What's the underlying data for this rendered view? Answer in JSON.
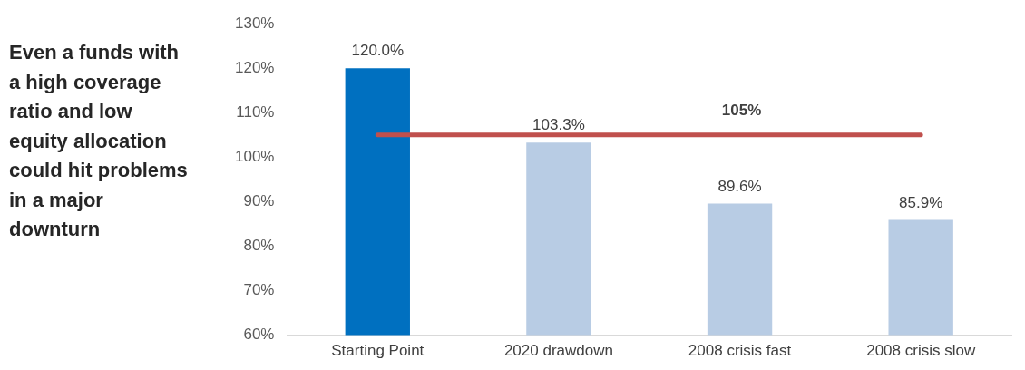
{
  "chart_data": {
    "type": "bar",
    "title": "Even a funds with a high coverage ratio and low equity allocation could hit problems in a major downturn",
    "categories": [
      "Starting Point",
      "2020 drawdown",
      "2008 crisis fast",
      "2008 crisis slow"
    ],
    "values": [
      120.0,
      103.3,
      89.6,
      85.9
    ],
    "colors": [
      "#0070c0",
      "#b8cce4",
      "#b8cce4",
      "#b8cce4"
    ],
    "value_labels": [
      "120.0%",
      "103.3%",
      "89.6%",
      "85.9%"
    ],
    "ylim": [
      60,
      130
    ],
    "yticks": [
      {
        "value": 60,
        "label": "60%"
      },
      {
        "value": 70,
        "label": "70%"
      },
      {
        "value": 80,
        "label": "80%"
      },
      {
        "value": 90,
        "label": "90%"
      },
      {
        "value": 100,
        "label": "100%"
      },
      {
        "value": 110,
        "label": "110%"
      },
      {
        "value": 120,
        "label": "120%"
      },
      {
        "value": 130,
        "label": "130%"
      }
    ],
    "ref_lines": [
      {
        "axis": "y",
        "value": 105,
        "label": "105%",
        "color": "#c0504d"
      }
    ],
    "grid": false,
    "legend": false
  }
}
